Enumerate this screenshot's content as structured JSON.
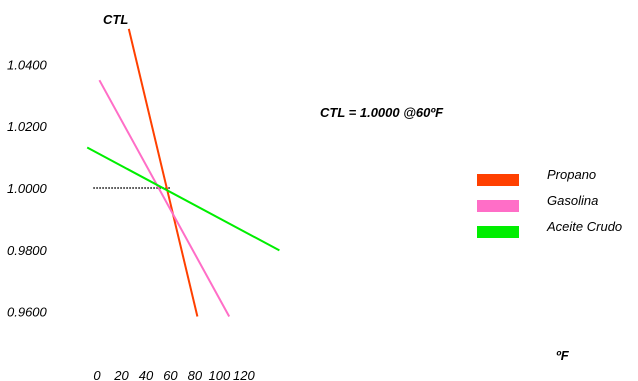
{
  "chart_data": {
    "type": "line",
    "ylabel": "CTL",
    "xlabel": "ºF",
    "annotation": "CTL = 1.0000 @60ºF",
    "x_ticks": [
      "0",
      "20",
      "40",
      "60",
      "80",
      "100",
      "120"
    ],
    "x_tick_values": [
      0,
      20,
      40,
      60,
      80,
      100,
      120
    ],
    "y_ticks": [
      "1.0400",
      "1.0200",
      "1.0000",
      "0.9800",
      "0.9600"
    ],
    "y_tick_values": [
      1.04,
      1.02,
      1.0,
      0.98,
      0.96
    ],
    "reference_line": {
      "value": 1.0,
      "x_range": [
        -3,
        60
      ],
      "style": "dotted"
    },
    "series": [
      {
        "name": "Propano",
        "color": "#FF4000",
        "x": [
          26,
          82
        ],
        "y": [
          1.0515,
          0.9584
        ]
      },
      {
        "name": "Gasolina",
        "color": "#FF6EC7",
        "x": [
          2,
          108
        ],
        "y": [
          1.0349,
          0.9584
        ]
      },
      {
        "name": "Aceite Crudo",
        "color": "#00EE00",
        "x": [
          -8,
          149
        ],
        "y": [
          1.0131,
          0.9798
        ]
      }
    ],
    "legend": {
      "position": "right"
    },
    "grid": false
  }
}
